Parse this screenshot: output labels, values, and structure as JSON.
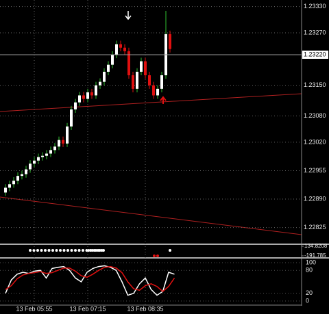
{
  "chart_data": [
    {
      "type": "candlestick",
      "open": [
        1.22905,
        1.22916,
        1.22924,
        1.22932,
        1.22943,
        1.22947,
        1.22958,
        1.22971,
        1.22978,
        1.22986,
        1.22989,
        1.22994,
        1.23002,
        1.2301,
        1.23025,
        1.23017,
        1.23056,
        1.23095,
        1.23111,
        1.23127,
        1.23119,
        1.23134,
        1.23127,
        1.2315,
        1.23158,
        1.23181,
        1.23197,
        1.2322,
        1.23244,
        1.23236,
        1.23228,
        1.23173,
        1.23142,
        1.23181,
        1.23205,
        1.23173,
        1.2315,
        1.23127,
        1.23142,
        1.23173,
        1.23267
      ],
      "high": [
        1.22924,
        1.22932,
        1.2294,
        1.22951,
        1.22955,
        1.22966,
        1.22979,
        1.22986,
        1.22994,
        1.22997,
        1.23002,
        1.2301,
        1.23018,
        1.23033,
        1.23033,
        1.23064,
        1.23103,
        1.23119,
        1.23135,
        1.23135,
        1.23142,
        1.23142,
        1.23158,
        1.23166,
        1.23189,
        1.23205,
        1.23228,
        1.23252,
        1.23252,
        1.23244,
        1.23236,
        1.23181,
        1.23189,
        1.23213,
        1.23213,
        1.23181,
        1.23158,
        1.2315,
        1.23181,
        1.2332,
        1.23275
      ],
      "low": [
        1.22897,
        1.22908,
        1.22916,
        1.22924,
        1.22935,
        1.22939,
        1.2295,
        1.22963,
        1.2297,
        1.22978,
        1.22981,
        1.22986,
        1.22994,
        1.23002,
        1.23009,
        1.23009,
        1.23048,
        1.23087,
        1.23103,
        1.23111,
        1.23111,
        1.23119,
        1.23119,
        1.23142,
        1.2315,
        1.23173,
        1.23189,
        1.23212,
        1.23228,
        1.2322,
        1.23165,
        1.23134,
        1.23134,
        1.23173,
        1.23165,
        1.23142,
        1.23119,
        1.23119,
        1.23134,
        1.23165,
        1.23225
      ],
      "close": [
        1.22916,
        1.22924,
        1.22932,
        1.22943,
        1.22947,
        1.22958,
        1.22971,
        1.22978,
        1.22986,
        1.22989,
        1.22994,
        1.23002,
        1.2301,
        1.23025,
        1.23017,
        1.23056,
        1.23095,
        1.23111,
        1.23127,
        1.23119,
        1.23134,
        1.23127,
        1.2315,
        1.23158,
        1.23181,
        1.23197,
        1.2322,
        1.23244,
        1.23236,
        1.23228,
        1.23173,
        1.23142,
        1.23181,
        1.23205,
        1.23173,
        1.2315,
        1.23127,
        1.23142,
        1.23173,
        1.23267,
        1.23233
      ],
      "up_color": "#ffffff",
      "down_color": "#e01010",
      "wick_color": "#2fbf2f",
      "ylim": [
        1.2279,
        1.23345
      ],
      "yticks": [
        {
          "value": 1.2333,
          "label": "1.23330"
        },
        {
          "value": 1.2327,
          "label": "1.23270"
        },
        {
          "value": 1.2315,
          "label": "1.23150"
        },
        {
          "value": 1.2308,
          "label": "1.23080"
        },
        {
          "value": 1.2302,
          "label": "1.23020"
        },
        {
          "value": 1.22955,
          "label": "1.22955"
        },
        {
          "value": 1.2289,
          "label": "1.22890"
        },
        {
          "value": 1.22825,
          "label": "1.22825"
        }
      ],
      "current_price": {
        "value": 1.2322,
        "label": "1.23220"
      },
      "xticks": [
        {
          "value": 7,
          "label": "13 Feb 05:55"
        },
        {
          "value": 20,
          "label": "13 Feb 07:15"
        },
        {
          "value": 34,
          "label": "13 Feb 08:35"
        }
      ],
      "grid": true
    },
    {
      "type": "indicator",
      "ylim": [
        -191.785,
        134.8208
      ],
      "yticks": [
        134.8208,
        -191.785
      ]
    },
    {
      "type": "line",
      "ylim": [
        0,
        100
      ],
      "yticks": [
        100,
        80,
        20,
        0
      ],
      "series": [
        {
          "color": "#ffffff",
          "values": [
            20,
            55,
            70,
            75,
            72,
            78,
            80,
            60,
            85,
            88,
            90,
            80,
            60,
            50,
            75,
            85,
            90,
            92,
            88,
            80,
            50,
            15,
            20,
            45,
            60,
            30,
            15,
            25,
            75,
            70
          ]
        },
        {
          "color": "#e01010",
          "values": [
            30,
            40,
            58,
            68,
            72,
            74,
            77,
            72,
            74,
            80,
            86,
            86,
            78,
            66,
            62,
            70,
            80,
            88,
            90,
            86,
            74,
            50,
            32,
            28,
            40,
            45,
            38,
            25,
            38,
            60
          ]
        }
      ]
    }
  ]
}
